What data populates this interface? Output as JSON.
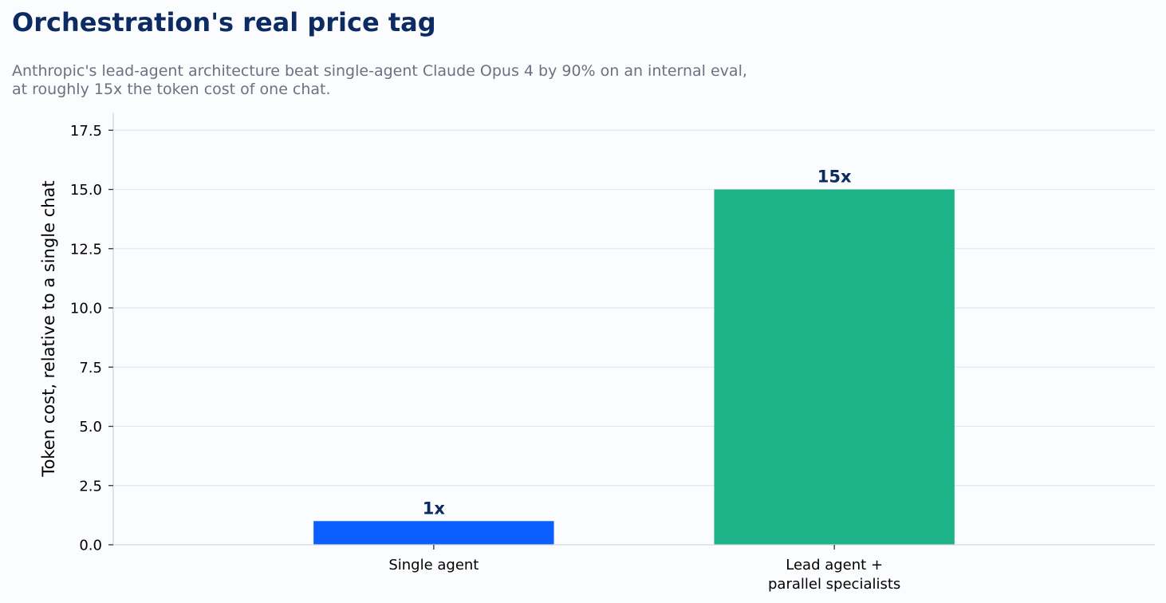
{
  "chart_data": {
    "type": "bar",
    "title": "Orchestration's real price tag",
    "subtitle_lines": [
      "Anthropic's lead-agent architecture beat single-agent Claude Opus 4 by 90% on an internal eval,",
      "at roughly 15x the token cost of one chat."
    ],
    "xlabel": "",
    "ylabel": "Token cost, relative to a single chat",
    "categories": [
      [
        "Single agent"
      ],
      [
        "Lead agent +",
        "parallel specialists"
      ]
    ],
    "values": [
      1,
      15
    ],
    "data_labels": [
      "1x",
      "15x"
    ],
    "bar_colors": [
      "#0b5fff",
      "#1db388"
    ],
    "ylim": [
      0,
      18.25
    ],
    "yticks": [
      0,
      2.5,
      5,
      7.5,
      10,
      12.5,
      15,
      17.5
    ],
    "ytick_labels": [
      "0.0",
      "2.5",
      "5.0",
      "7.5",
      "10.0",
      "12.5",
      "15.0",
      "17.5"
    ],
    "grid": "y",
    "legend": "none"
  },
  "colors": {
    "title": "#0d2b63",
    "subtitle": "#6b7280",
    "data_label": "#0d2b63",
    "grid": "#e5e7eb",
    "axis": "#d1d5db",
    "background": "#fbfcfe"
  }
}
